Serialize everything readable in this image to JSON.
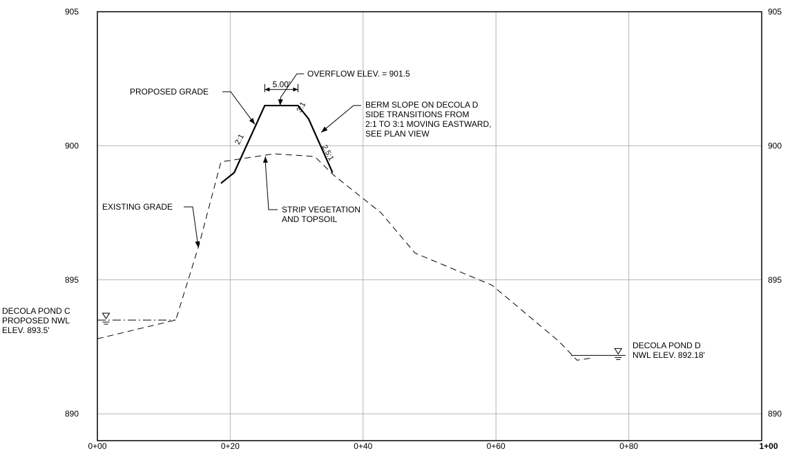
{
  "chart_data": {
    "type": "line",
    "xlim": [
      0,
      100
    ],
    "ylim": [
      889,
      905
    ],
    "grid": true,
    "x_ticks": [
      {
        "x": 0,
        "label": "0+00"
      },
      {
        "x": 20,
        "label": "0+20"
      },
      {
        "x": 40,
        "label": "0+40"
      },
      {
        "x": 60,
        "label": "0+60"
      },
      {
        "x": 80,
        "label": "0+80"
      },
      {
        "x": 100,
        "label": "1+00"
      }
    ],
    "y_ticks": [
      {
        "y": 905,
        "label": "905"
      },
      {
        "y": 900,
        "label": "900"
      },
      {
        "y": 895,
        "label": "895"
      },
      {
        "y": 890,
        "label": "890"
      }
    ],
    "series": [
      {
        "name": "EXISTING GRADE",
        "style": "dashed",
        "points": [
          [
            0,
            892.8
          ],
          [
            11.8,
            893.5
          ],
          [
            15.3,
            896.3
          ],
          [
            18.6,
            899.4
          ],
          [
            26.6,
            899.7
          ],
          [
            32.7,
            899.6
          ],
          [
            35.6,
            898.9
          ],
          [
            42.7,
            897.5
          ],
          [
            47.8,
            896.0
          ],
          [
            59.4,
            894.8
          ],
          [
            69.5,
            892.7
          ],
          [
            72.2,
            892.0
          ],
          [
            74.8,
            892.1
          ]
        ]
      },
      {
        "name": "PROPOSED GRADE",
        "style": "solid",
        "points": [
          [
            18.6,
            898.6
          ],
          [
            20.6,
            899.0
          ],
          [
            25.2,
            901.5
          ],
          [
            30.2,
            901.5
          ],
          [
            31.8,
            901.0
          ],
          [
            35.4,
            899.0
          ]
        ]
      }
    ],
    "water_levels": [
      {
        "label_lines": [
          "DECOLA POND C",
          "PROPOSED NWL",
          "ELEV. 893.5'"
        ],
        "elev": 893.5,
        "x_from": 0,
        "x_to": 11.8,
        "symbol_x": 1.3
      },
      {
        "label_lines": [
          "DECOLA POND D",
          "NWL ELEV. 892.18'"
        ],
        "elev": 892.18,
        "x_from": 71.3,
        "x_to": 79.5,
        "symbol_x": 78.4
      }
    ],
    "annotations": [
      {
        "text_lines": [
          "OVERFLOW ELEV. = 901.5"
        ],
        "target": [
          27.5,
          901.5
        ]
      },
      {
        "text_lines": [
          "PROPOSED GRADE"
        ],
        "target": [
          23.7,
          900.8
        ]
      },
      {
        "text_lines": [
          "BERM SLOPE ON DECOLA D",
          "SIDE TRANSITIONS FROM",
          "2:1 TO 3:1 MOVING EASTWARD,",
          "SEE PLAN VIEW"
        ],
        "target": [
          33.7,
          900.5
        ]
      },
      {
        "text_lines": [
          "EXISTING GRADE"
        ],
        "target": [
          15.2,
          896.2
        ]
      },
      {
        "text_lines": [
          "STRIP VEGETATION",
          "AND TOPSOIL"
        ],
        "target": [
          25.3,
          899.6
        ]
      }
    ],
    "dimension": {
      "label": "5.00'",
      "x_from": 25.2,
      "x_to": 30.2,
      "elev": 902.1
    },
    "slope_labels": [
      {
        "text": "2:1",
        "x": 21.7,
        "y": 900.2,
        "angle": -62
      },
      {
        "text": "3:1",
        "x": 31.0,
        "y": 901.4,
        "angle": -62
      },
      {
        "text": "2.5:1",
        "x": 34.4,
        "y": 899.7,
        "angle": 62
      }
    ]
  }
}
